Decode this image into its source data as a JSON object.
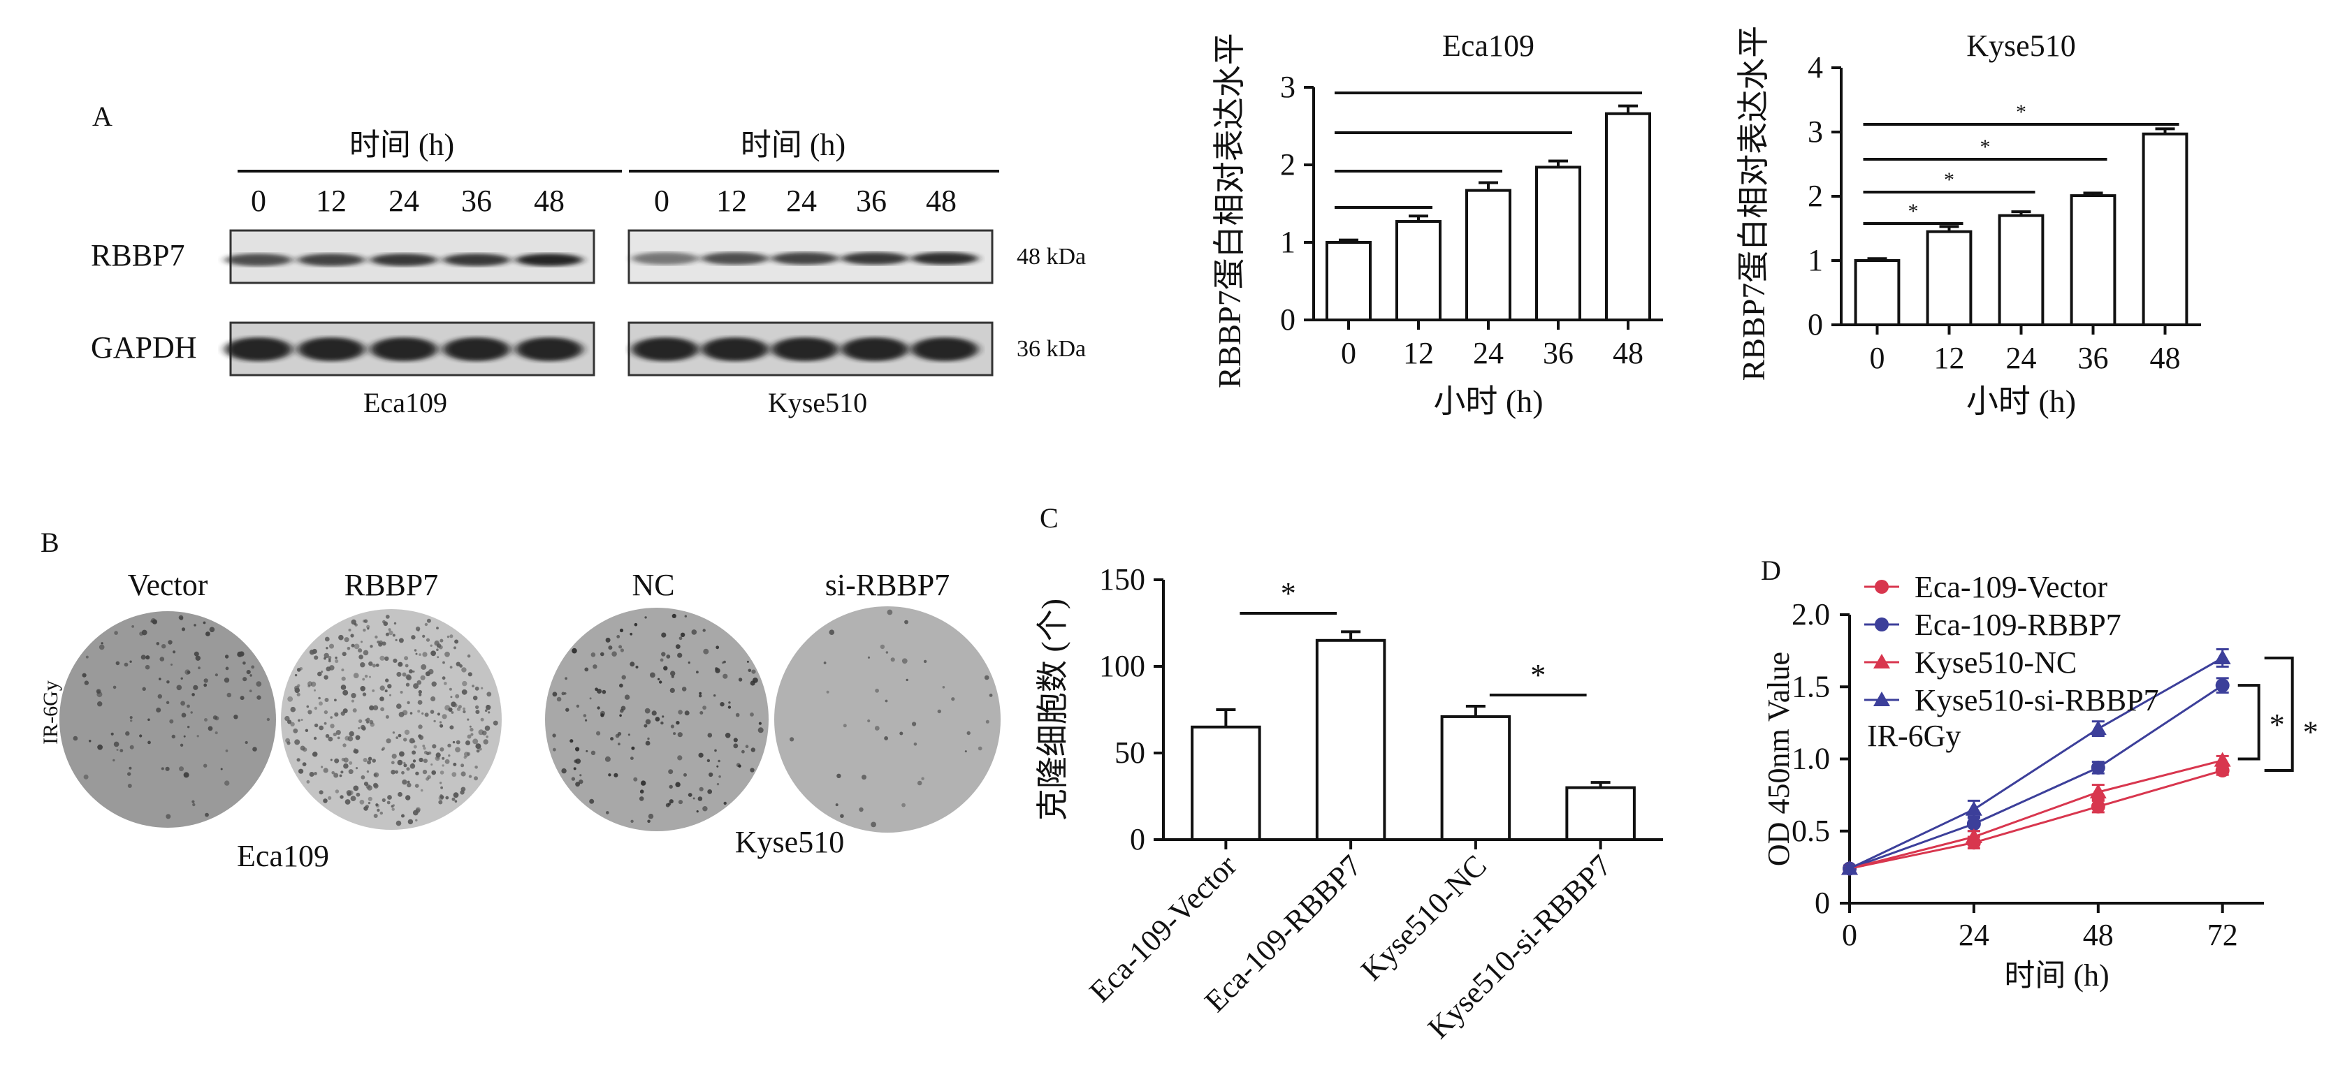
{
  "panel_labels": {
    "a": "A",
    "b": "B",
    "c": "C",
    "d": "D"
  },
  "western_blot": {
    "time_label": "时间 (h)",
    "time_points": [
      "0",
      "12",
      "24",
      "36",
      "48"
    ],
    "rows": [
      "RBBP7",
      "GAPDH"
    ],
    "kda": [
      "48 kDa",
      "36 kDa"
    ],
    "cell_lines": [
      "Eca109",
      "Kyse510"
    ]
  },
  "colony": {
    "treatment": "IR-6Gy",
    "labels": [
      "Vector",
      "RBBP7",
      "NC",
      "si-RBBP7"
    ],
    "cell_lines": [
      "Eca109",
      "Kyse510"
    ]
  },
  "colors": {
    "red": "#d8364e",
    "blue": "#3c3f9a",
    "black": "#111111"
  },
  "chart_data": [
    {
      "type": "bar",
      "title": "Eca109",
      "xlabel": "小时 (h)",
      "ylabel": "RBBP7蛋白相对表达水平",
      "categories": [
        "0",
        "12",
        "24",
        "36",
        "48"
      ],
      "values": [
        1.0,
        1.27,
        1.67,
        1.97,
        2.66
      ],
      "errors": [
        0.03,
        0.07,
        0.1,
        0.08,
        0.1
      ],
      "ylim": [
        0,
        3
      ],
      "yticks": [
        "0",
        "1",
        "2",
        "3"
      ],
      "significance": [
        {
          "from": "0",
          "to": "12",
          "label": ""
        },
        {
          "from": "0",
          "to": "24",
          "label": ""
        },
        {
          "from": "0",
          "to": "36",
          "label": ""
        },
        {
          "from": "0",
          "to": "48",
          "label": ""
        }
      ]
    },
    {
      "type": "bar",
      "title": "Kyse510",
      "xlabel": "小时 (h)",
      "ylabel": "RBBP7蛋白相对表达水平",
      "categories": [
        "0",
        "12",
        "24",
        "36",
        "48"
      ],
      "values": [
        1.0,
        1.45,
        1.7,
        2.01,
        2.97
      ],
      "errors": [
        0.03,
        0.08,
        0.06,
        0.04,
        0.08
      ],
      "ylim": [
        0,
        4
      ],
      "yticks": [
        "0",
        "1",
        "2",
        "3",
        "4"
      ],
      "significance": [
        {
          "from": "0",
          "to": "12",
          "label": "*"
        },
        {
          "from": "0",
          "to": "24",
          "label": "*"
        },
        {
          "from": "0",
          "to": "36",
          "label": "*"
        },
        {
          "from": "0",
          "to": "48",
          "label": "*"
        }
      ]
    },
    {
      "type": "bar",
      "title": "",
      "xlabel": "",
      "ylabel": "克隆细胞数 (个)",
      "categories": [
        "Eca-109-Vector",
        "Eca-109-RBBP7",
        "Kyse510-NC",
        "Kyse510-si-RBBP7"
      ],
      "values": [
        65,
        115,
        71,
        30
      ],
      "errors": [
        10,
        5,
        6,
        3
      ],
      "ylim": [
        0,
        150
      ],
      "yticks": [
        "0",
        "50",
        "100",
        "150"
      ],
      "significance": [
        {
          "from": "Eca-109-Vector",
          "to": "Eca-109-RBBP7",
          "label": "*"
        },
        {
          "from": "Kyse510-NC",
          "to": "Kyse510-si-RBBP7",
          "label": "*"
        }
      ]
    },
    {
      "type": "line",
      "title": "",
      "xlabel": "时间 (h)",
      "ylabel": "OD 450nm Value",
      "annotation": "IR-6Gy",
      "x": [
        0,
        24,
        48,
        72
      ],
      "xticks": [
        "0",
        "24",
        "48",
        "72"
      ],
      "xlim": [
        0,
        80
      ],
      "ylim": [
        0,
        2.0
      ],
      "yticks": [
        "0",
        "0.5",
        "1.0",
        "1.5",
        "2.0"
      ],
      "series": [
        {
          "name": "Eca-109-Vector",
          "marker": "circle",
          "color": "#d8364e",
          "values": [
            0.24,
            0.42,
            0.67,
            0.92
          ],
          "errors": [
            0.02,
            0.04,
            0.04,
            0.03
          ]
        },
        {
          "name": "Eca-109-RBBP7",
          "marker": "circle",
          "color": "#3c3f9a",
          "values": [
            0.24,
            0.55,
            0.94,
            1.51
          ],
          "errors": [
            0.02,
            0.05,
            0.04,
            0.05
          ]
        },
        {
          "name": "Kyse510-NC",
          "marker": "triangle",
          "color": "#d8364e",
          "values": [
            0.24,
            0.46,
            0.77,
            0.99
          ],
          "errors": [
            0.02,
            0.04,
            0.05,
            0.03
          ]
        },
        {
          "name": "Kyse510-si-RBBP7",
          "marker": "triangle",
          "color": "#3c3f9a",
          "values": [
            0.24,
            0.65,
            1.21,
            1.7
          ],
          "errors": [
            0.02,
            0.06,
            0.05,
            0.06
          ]
        }
      ],
      "significance": [
        {
          "label": "*"
        },
        {
          "label": "*"
        }
      ]
    }
  ]
}
